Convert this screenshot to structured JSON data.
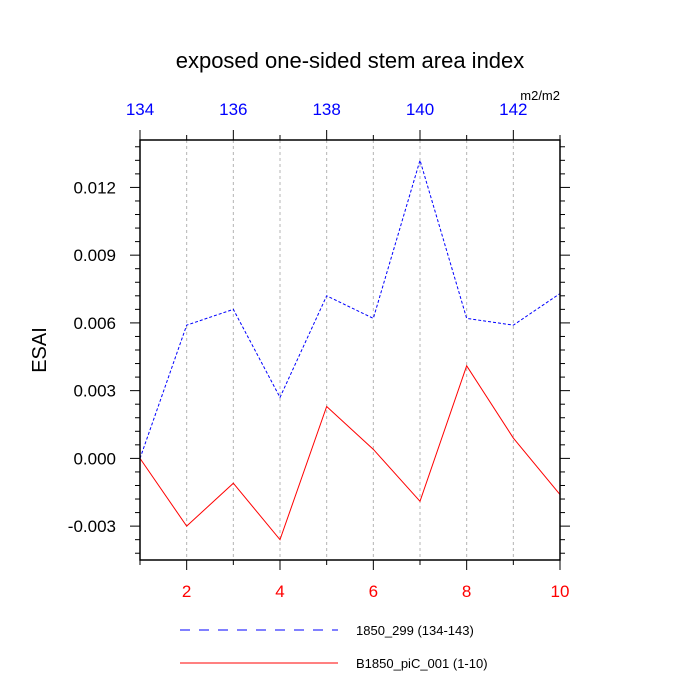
{
  "chart_data": {
    "type": "line",
    "title": "exposed one-sided stem area index",
    "ylabel": "ESAI",
    "units_label": "m2/m2",
    "x_bottom": {
      "range": [
        1,
        10
      ],
      "ticks": [
        2,
        4,
        6,
        8,
        10
      ],
      "tick_labels": [
        "2",
        "4",
        "6",
        "8",
        "10"
      ],
      "color": "#ff0000"
    },
    "x_top": {
      "range": [
        134,
        143
      ],
      "ticks": [
        134,
        136,
        138,
        140,
        142
      ],
      "tick_labels": [
        "134",
        "136",
        "138",
        "140",
        "142"
      ],
      "color": "#0000ff"
    },
    "ylim": [
      -0.0045,
      0.0141
    ],
    "y_ticks": [
      -0.003,
      0.0,
      0.003,
      0.006,
      0.009,
      0.012
    ],
    "y_tick_labels": [
      "-0.003",
      "0.000",
      "0.003",
      "0.006",
      "0.009",
      "0.012"
    ],
    "vertical_grid": [
      2,
      3,
      4,
      5,
      6,
      7,
      8,
      9
    ],
    "series": [
      {
        "name": "1850_299 (134-143)",
        "color": "#0000ff",
        "dash": "dashed",
        "x": [
          1,
          2,
          3,
          4,
          5,
          6,
          7,
          8,
          9,
          10
        ],
        "values": [
          0.0,
          0.0059,
          0.0066,
          0.0027,
          0.0072,
          0.0062,
          0.0132,
          0.0062,
          0.0059,
          0.0073
        ]
      },
      {
        "name": "B1850_piC_001 (1-10)",
        "color": "#ff0000",
        "dash": "solid",
        "x": [
          1,
          2,
          3,
          4,
          5,
          6,
          7,
          8,
          9,
          10
        ],
        "values": [
          0.0,
          -0.003,
          -0.0011,
          -0.0036,
          0.0023,
          0.0004,
          -0.0019,
          0.0041,
          0.0009,
          -0.0016
        ]
      }
    ],
    "legend_position": "bottom"
  }
}
